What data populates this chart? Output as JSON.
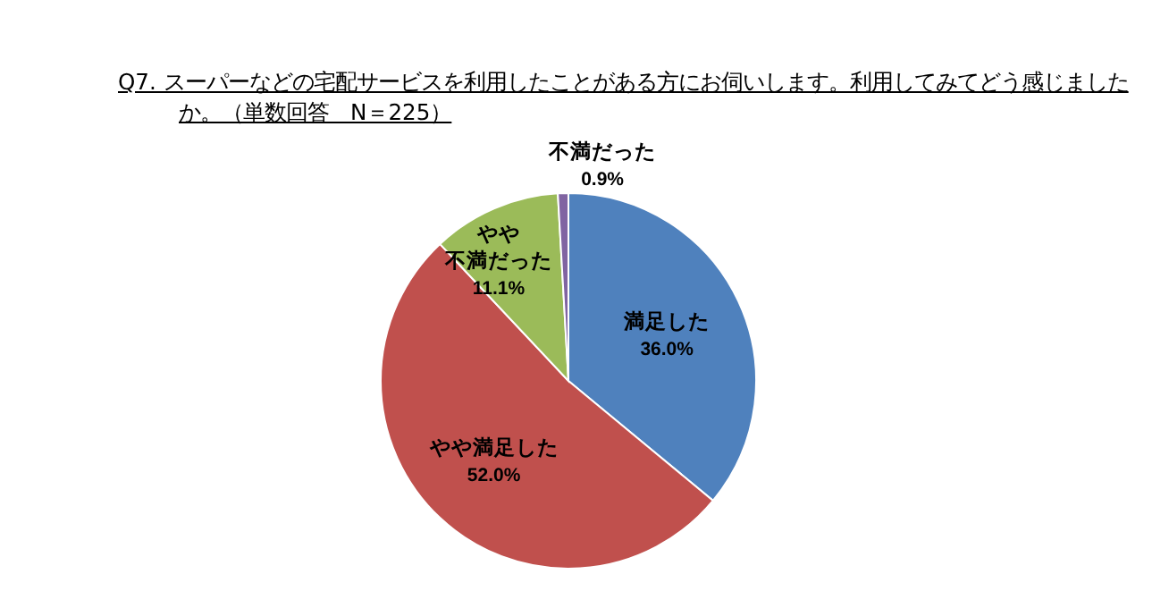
{
  "chart_data": {
    "type": "pie",
    "title": "Q7. スーパーなどの宅配サービスを利用したことがある方にお伺いします。利用してみてどう感じましたか。（単数回答　N＝225）",
    "categories": [
      "満足した",
      "やや満足した",
      "やや不満だった",
      "不満だった"
    ],
    "values": [
      36.0,
      52.0,
      11.1,
      0.9
    ],
    "value_labels": [
      "36.0%",
      "52.0%",
      "11.1%",
      "0.9%"
    ],
    "colors": [
      "#4f81bd",
      "#c0504d",
      "#9bbb59",
      "#8064a2"
    ],
    "legend": false
  }
}
